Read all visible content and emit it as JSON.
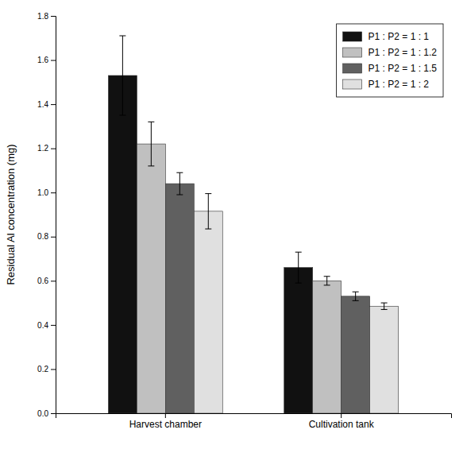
{
  "chart_data": {
    "type": "bar",
    "categories": [
      "Harvest chamber",
      "Cultivation tank"
    ],
    "series": [
      {
        "name": "P1 : P2 = 1 : 1",
        "color": "#111111",
        "values": [
          1.53,
          0.66
        ],
        "errors": [
          0.18,
          0.07
        ]
      },
      {
        "name": "P1 : P2 = 1 : 1.2",
        "color": "#c0c0c0",
        "values": [
          1.22,
          0.6
        ],
        "errors": [
          0.1,
          0.02
        ]
      },
      {
        "name": "P1 : P2 = 1 : 1.5",
        "color": "#606060",
        "values": [
          1.04,
          0.53
        ],
        "errors": [
          0.05,
          0.02
        ]
      },
      {
        "name": "P1 : P2 = 1 : 2",
        "color": "#e0e0e0",
        "values": [
          0.915,
          0.485
        ],
        "errors": [
          0.08,
          0.015
        ]
      }
    ],
    "ylabel": "Residual Al concentration (mg)",
    "ylim": [
      0.0,
      1.8
    ],
    "yticks": [
      {
        "value": 0,
        "label": "0.0"
      },
      0.2,
      0.4,
      0.6,
      0.8,
      {
        "value": 1,
        "label": "1.0"
      },
      1.2,
      1.4,
      1.6,
      1.8
    ],
    "legend": "upper right"
  }
}
